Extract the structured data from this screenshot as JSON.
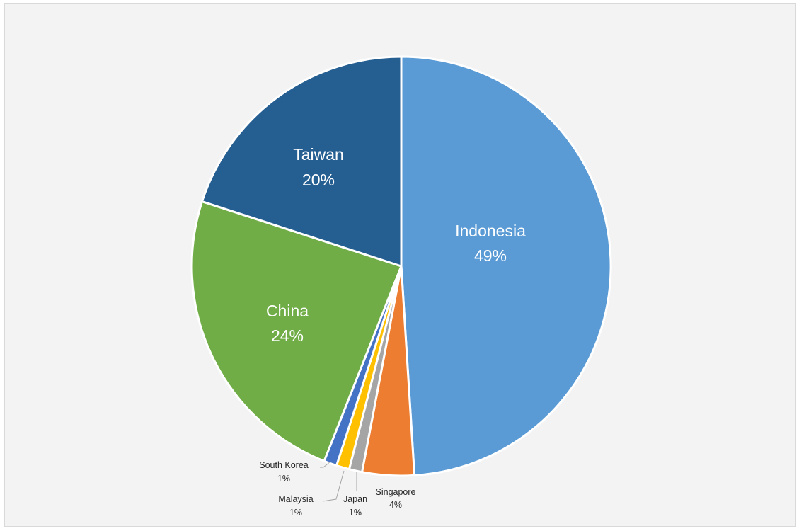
{
  "chart_data": {
    "type": "pie",
    "title": "",
    "start_angle_deg": 0,
    "direction": "clockwise",
    "colors": {
      "Indonesia": "#5b9bd5",
      "Singapore": "#ed7d31",
      "Japan": "#a5a5a5",
      "Malaysia": "#ffc000",
      "South Korea": "#4472c4",
      "China": "#70ad47",
      "Taiwan": "#255e91"
    },
    "slices": [
      {
        "label": "Indonesia",
        "value": 49,
        "display": "49%"
      },
      {
        "label": "Singapore",
        "value": 4,
        "display": "4%"
      },
      {
        "label": "Japan",
        "value": 1,
        "display": "1%"
      },
      {
        "label": "Malaysia",
        "value": 1,
        "display": "1%"
      },
      {
        "label": "South Korea",
        "value": 1,
        "display": "1%"
      },
      {
        "label": "China",
        "value": 24,
        "display": "24%"
      },
      {
        "label": "Taiwan",
        "value": 20,
        "display": "20%"
      }
    ]
  }
}
